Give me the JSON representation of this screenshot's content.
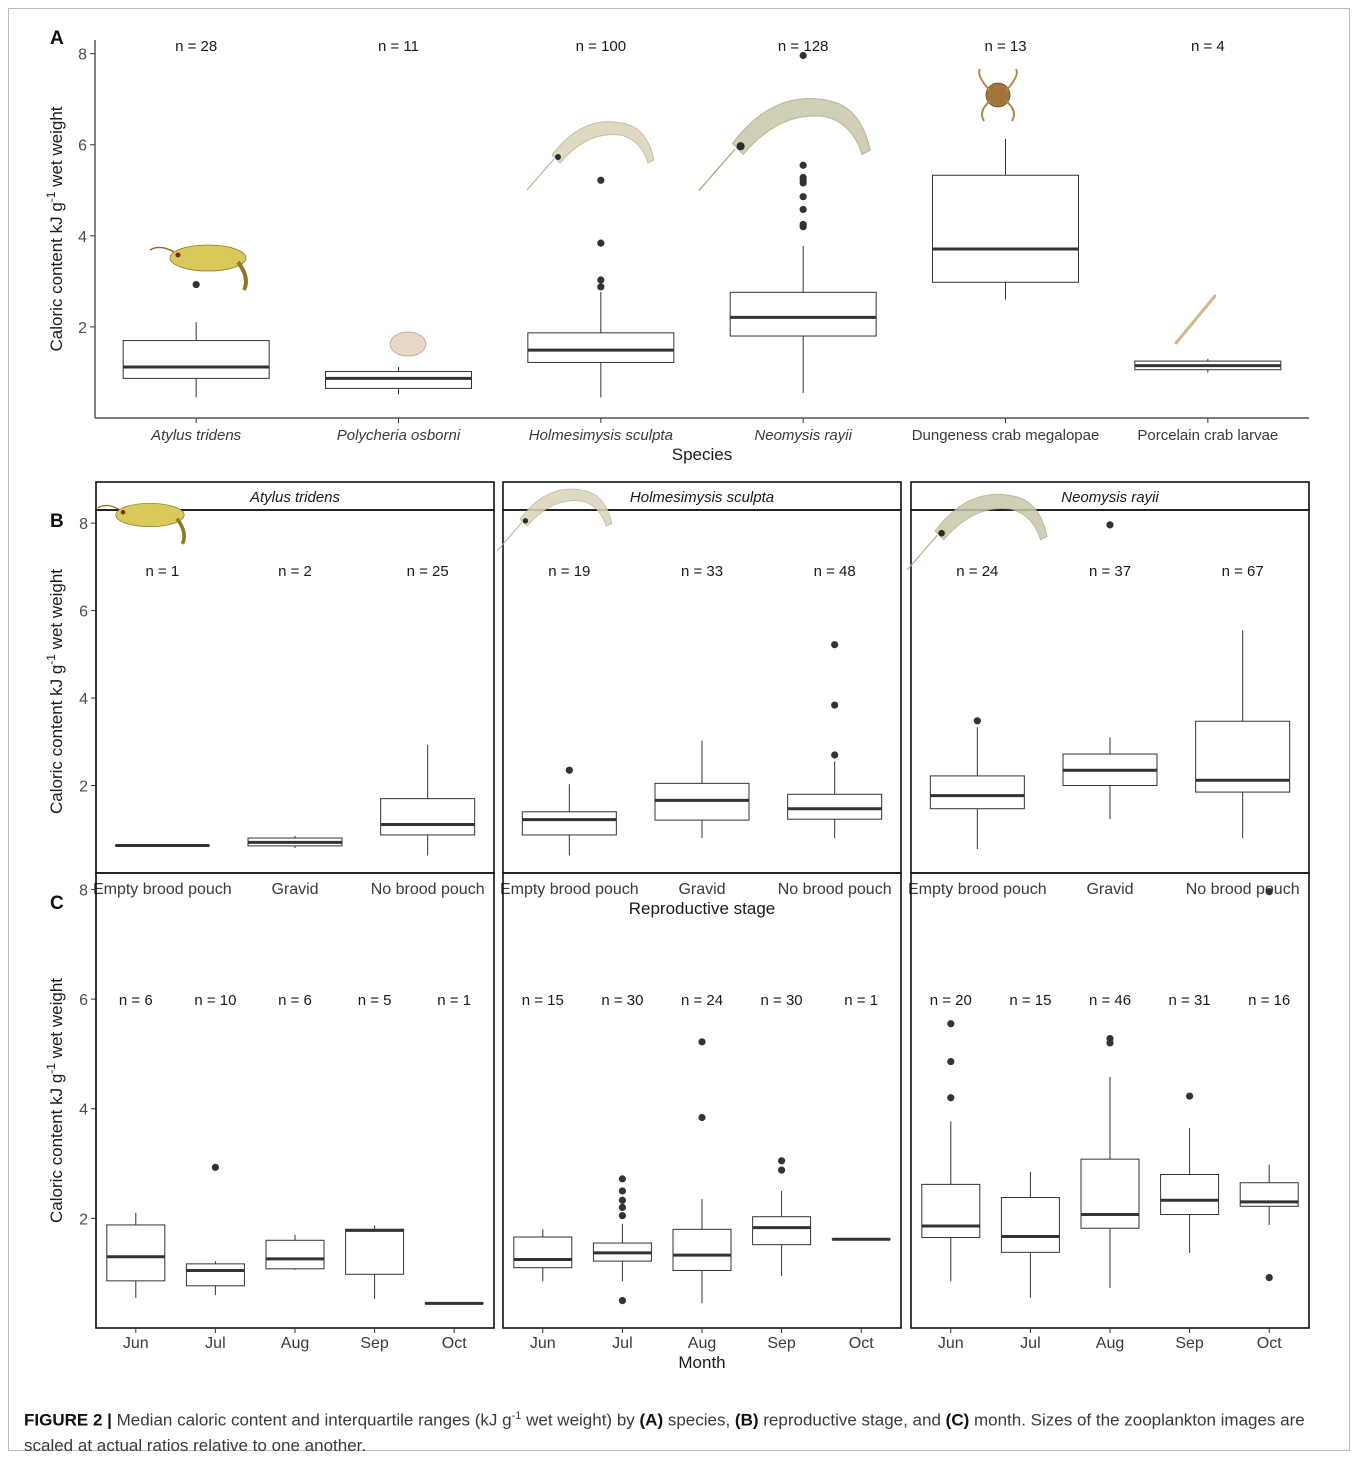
{
  "figure": {
    "ylabel_main": "Caloric content kJ g",
    "ylabel_sup": "-1",
    "ylabel_tail": " wet weight",
    "yticks": [
      2,
      4,
      6,
      8
    ]
  },
  "chart_data": [
    {
      "type": "boxplot",
      "panel": "A",
      "xlabel": "Species",
      "ylim": [
        0,
        8.3
      ],
      "categories": [
        "Atylus tridens",
        "Polycheria osborni",
        "Holmesimysis sculpta",
        "Neomysis rayii",
        "Dungeness crab megalopae",
        "Porcelain crab larvae"
      ],
      "italic": [
        true,
        true,
        true,
        true,
        false,
        false
      ],
      "n_labels": [
        "n = 28",
        "n = 11",
        "n = 100",
        "n = 128",
        "n = 13",
        "n = 4"
      ],
      "boxes": [
        {
          "min": 0.45,
          "q1": 0.87,
          "median": 1.12,
          "q3": 1.7,
          "max": 2.1,
          "outliers": [
            2.93
          ]
        },
        {
          "min": 0.52,
          "q1": 0.65,
          "median": 0.87,
          "q3": 1.02,
          "max": 1.12,
          "outliers": []
        },
        {
          "min": 0.45,
          "q1": 1.22,
          "median": 1.49,
          "q3": 1.87,
          "max": 2.77,
          "outliers": [
            2.88,
            3.03,
            3.84,
            5.22
          ]
        },
        {
          "min": 0.55,
          "q1": 1.8,
          "median": 2.21,
          "q3": 2.76,
          "max": 3.78,
          "outliers": [
            4.2,
            4.25,
            4.58,
            4.86,
            5.16,
            5.22,
            5.28,
            5.55,
            7.96
          ]
        },
        {
          "min": 2.6,
          "q1": 2.98,
          "median": 3.71,
          "q3": 5.33,
          "max": 6.13,
          "outliers": []
        },
        {
          "min": 1.0,
          "q1": 1.06,
          "median": 1.15,
          "q3": 1.25,
          "max": 1.3,
          "outliers": []
        }
      ]
    },
    {
      "type": "boxplot",
      "panel": "B",
      "xlabel": "Reproductive stage",
      "ylim": [
        0,
        8.3
      ],
      "facets": [
        {
          "title": "Atylus tridens",
          "categories": [
            "Empty brood pouch",
            "Gravid",
            "No brood pouch"
          ],
          "n_labels": [
            "n = 1",
            "n = 2",
            "n = 25"
          ],
          "boxes": [
            {
              "min": 0.63,
              "q1": 0.63,
              "median": 0.63,
              "q3": 0.63,
              "max": 0.63,
              "outliers": []
            },
            {
              "min": 0.57,
              "q1": 0.62,
              "median": 0.7,
              "q3": 0.8,
              "max": 0.85,
              "outliers": []
            },
            {
              "min": 0.4,
              "q1": 0.87,
              "median": 1.11,
              "q3": 1.7,
              "max": 2.93,
              "outliers": []
            }
          ]
        },
        {
          "title": "Holmesimysis sculpta",
          "categories": [
            "Empty brood pouch",
            "Gravid",
            "No brood pouch"
          ],
          "n_labels": [
            "n = 19",
            "n = 33",
            "n = 48"
          ],
          "boxes": [
            {
              "min": 0.4,
              "q1": 0.87,
              "median": 1.22,
              "q3": 1.4,
              "max": 2.03,
              "outliers": [
                2.35
              ]
            },
            {
              "min": 0.8,
              "q1": 1.21,
              "median": 1.66,
              "q3": 2.05,
              "max": 3.03,
              "outliers": []
            },
            {
              "min": 0.8,
              "q1": 1.23,
              "median": 1.47,
              "q3": 1.8,
              "max": 2.55,
              "outliers": [
                2.7,
                3.84,
                5.22
              ]
            }
          ]
        },
        {
          "title": "Neomysis rayii",
          "categories": [
            "Empty brood pouch",
            "Gravid",
            "No brood pouch"
          ],
          "n_labels": [
            "n = 24",
            "n = 37",
            "n = 67"
          ],
          "boxes": [
            {
              "min": 0.55,
              "q1": 1.47,
              "median": 1.77,
              "q3": 2.22,
              "max": 3.33,
              "outliers": [
                3.48
              ]
            },
            {
              "min": 1.23,
              "q1": 2.0,
              "median": 2.35,
              "q3": 2.72,
              "max": 3.1,
              "outliers": [
                7.96
              ]
            },
            {
              "min": 0.8,
              "q1": 1.85,
              "median": 2.12,
              "q3": 3.47,
              "max": 5.55,
              "outliers": []
            }
          ]
        }
      ]
    },
    {
      "type": "boxplot",
      "panel": "C",
      "xlabel": "Month",
      "ylim": [
        0,
        8.3
      ],
      "facets": [
        {
          "categories": [
            "Jun",
            "Jul",
            "Aug",
            "Sep",
            "Oct"
          ],
          "n_labels": [
            "n = 6",
            "n = 10",
            "n = 6",
            "n = 5",
            "n = 1"
          ],
          "boxes": [
            {
              "min": 0.55,
              "q1": 0.86,
              "median": 1.3,
              "q3": 1.88,
              "max": 2.1,
              "outliers": []
            },
            {
              "min": 0.6,
              "q1": 0.77,
              "median": 1.05,
              "q3": 1.17,
              "max": 1.22,
              "outliers": [
                2.93
              ]
            },
            {
              "min": 1.06,
              "q1": 1.08,
              "median": 1.26,
              "q3": 1.6,
              "max": 1.7,
              "outliers": []
            },
            {
              "min": 0.53,
              "q1": 0.98,
              "median": 1.78,
              "q3": 1.8,
              "max": 1.87,
              "outliers": []
            },
            {
              "min": 0.45,
              "q1": 0.45,
              "median": 0.45,
              "q3": 0.45,
              "max": 0.45,
              "outliers": []
            }
          ]
        },
        {
          "categories": [
            "Jun",
            "Jul",
            "Aug",
            "Sep",
            "Oct"
          ],
          "n_labels": [
            "n = 15",
            "n = 30",
            "n = 24",
            "n = 30",
            "n = 1"
          ],
          "boxes": [
            {
              "min": 0.85,
              "q1": 1.1,
              "median": 1.25,
              "q3": 1.66,
              "max": 1.8,
              "outliers": []
            },
            {
              "min": 0.85,
              "q1": 1.22,
              "median": 1.37,
              "q3": 1.55,
              "max": 1.9,
              "outliers": [
                0.5,
                2.05,
                2.2,
                2.33,
                2.5,
                2.72
              ]
            },
            {
              "min": 0.45,
              "q1": 1.05,
              "median": 1.33,
              "q3": 1.8,
              "max": 2.35,
              "outliers": [
                3.84,
                5.22
              ]
            },
            {
              "min": 0.95,
              "q1": 1.52,
              "median": 1.83,
              "q3": 2.03,
              "max": 2.5,
              "outliers": [
                2.88,
                3.05
              ]
            },
            {
              "min": 1.62,
              "q1": 1.62,
              "median": 1.62,
              "q3": 1.62,
              "max": 1.62,
              "outliers": []
            }
          ]
        },
        {
          "categories": [
            "Jun",
            "Jul",
            "Aug",
            "Sep",
            "Oct"
          ],
          "n_labels": [
            "n = 20",
            "n = 15",
            "n = 46",
            "n = 31",
            "n = 16"
          ],
          "boxes": [
            {
              "min": 0.85,
              "q1": 1.65,
              "median": 1.86,
              "q3": 2.62,
              "max": 3.77,
              "outliers": [
                4.2,
                4.86,
                5.55
              ]
            },
            {
              "min": 0.55,
              "q1": 1.38,
              "median": 1.67,
              "q3": 2.38,
              "max": 2.85,
              "outliers": []
            },
            {
              "min": 0.73,
              "q1": 1.82,
              "median": 2.07,
              "q3": 3.08,
              "max": 4.58,
              "outliers": [
                5.2,
                5.28
              ]
            },
            {
              "min": 1.37,
              "q1": 2.07,
              "median": 2.33,
              "q3": 2.8,
              "max": 3.65,
              "outliers": [
                4.23
              ]
            },
            {
              "min": 1.88,
              "q1": 2.22,
              "median": 2.3,
              "q3": 2.65,
              "max": 2.98,
              "outliers": [
                0.92,
                7.96
              ]
            }
          ]
        }
      ]
    }
  ],
  "caption": {
    "label": "FIGURE 2 |",
    "t1": " Median caloric content and interquartile ranges (kJ g",
    "sup": "-1",
    "t2": " wet weight) by ",
    "a": "(A)",
    "t3": " species, ",
    "b": "(B)",
    "t4": " reproductive stage, and ",
    "c": "(C)",
    "t5": " month. Sizes of the zooplankton images are scaled at actual ratios relative to one another."
  }
}
